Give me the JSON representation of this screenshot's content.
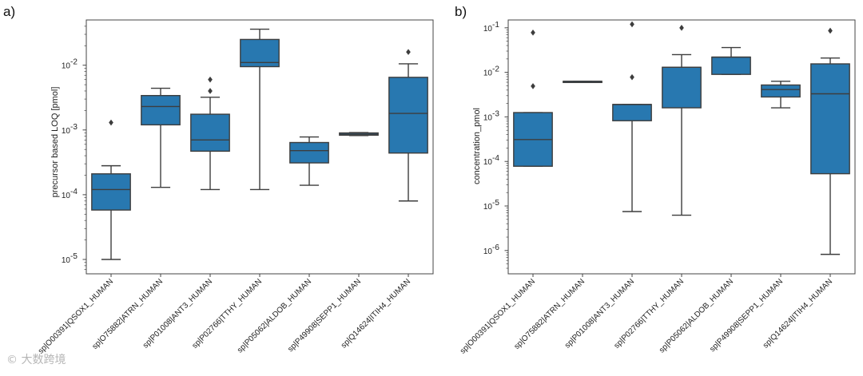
{
  "colors": {
    "box": "#2878b0",
    "line": "#3d3d3d",
    "frame": "#444444"
  },
  "watermark": "© 大数跨境",
  "chart_data": [
    {
      "type": "box",
      "panel_label": "a)",
      "ylabel": "precursor based LOQ [pmol]",
      "yscale": "log",
      "ylim": [
        6e-06,
        0.05
      ],
      "ticks": [
        {
          "value": 1e-05,
          "label": "10"
        },
        {
          "value": 0.0001,
          "label": "10"
        },
        {
          "value": 0.001,
          "label": "10"
        },
        {
          "value": 0.01,
          "label": "10"
        }
      ],
      "tick_exponents": [
        "-5",
        "-4",
        "-3",
        "-2"
      ],
      "categories": [
        "sp|O00391|QSOX1_HUMAN",
        "sp|O75882|ATRN_HUMAN",
        "sp|P01008|ANT3_HUMAN",
        "sp|P02766|TTHY_HUMAN",
        "sp|P05062|ALDOB_HUMAN",
        "sp|P49908|SEPP1_HUMAN",
        "sp|Q14624|ITIH4_HUMAN"
      ],
      "boxes": [
        {
          "whislo": 1e-05,
          "q1": 5.8e-05,
          "med": 0.00012,
          "q3": 0.00021,
          "whishi": 0.00028,
          "fliers": [
            0.0013
          ]
        },
        {
          "whislo": 0.00013,
          "q1": 0.0012,
          "med": 0.0023,
          "q3": 0.0034,
          "whishi": 0.0044,
          "fliers": []
        },
        {
          "whislo": 0.00012,
          "q1": 0.00047,
          "med": 0.0007,
          "q3": 0.00175,
          "whishi": 0.0032,
          "fliers": [
            0.006,
            0.004
          ]
        },
        {
          "whislo": 0.00012,
          "q1": 0.0095,
          "med": 0.011,
          "q3": 0.025,
          "whishi": 0.036,
          "fliers": []
        },
        {
          "whislo": 0.00014,
          "q1": 0.00031,
          "med": 0.00048,
          "q3": 0.00064,
          "whishi": 0.00078,
          "fliers": []
        },
        {
          "whislo": 0.00082,
          "q1": 0.00083,
          "med": 0.00086,
          "q3": 0.0009,
          "whishi": 0.00091,
          "fliers": []
        },
        {
          "whislo": 8e-05,
          "q1": 0.00044,
          "med": 0.0018,
          "q3": 0.0065,
          "whishi": 0.0105,
          "fliers": [
            0.016
          ]
        }
      ]
    },
    {
      "type": "box",
      "panel_label": "b)",
      "ylabel": "concentration_pmol",
      "yscale": "log",
      "ylim": [
        3e-07,
        0.15
      ],
      "ticks": [
        {
          "value": 1e-06,
          "label": "10"
        },
        {
          "value": 1e-05,
          "label": "10"
        },
        {
          "value": 0.0001,
          "label": "10"
        },
        {
          "value": 0.001,
          "label": "10"
        },
        {
          "value": 0.01,
          "label": "10"
        },
        {
          "value": 0.1,
          "label": "10"
        }
      ],
      "tick_exponents": [
        "-6",
        "-5",
        "-4",
        "-3",
        "-2",
        "-1"
      ],
      "categories": [
        "sp|O00391|QSOX1_HUMAN",
        "sp|O75882|ATRN_HUMAN",
        "sp|P01008|ANT3_HUMAN",
        "sp|P02766|TTHY_HUMAN",
        "sp|P05062|ALDOB_HUMAN",
        "sp|P49908|SEPP1_HUMAN",
        "sp|Q14624|ITIH4_HUMAN"
      ],
      "boxes": [
        {
          "whislo": 7.8e-05,
          "q1": 7.8e-05,
          "med": 0.00031,
          "q3": 0.00125,
          "whishi": 0.00125,
          "fliers": [
            0.078,
            0.0049
          ]
        },
        {
          "whislo": 0.0063,
          "q1": 0.0063,
          "med": 0.0063,
          "q3": 0.0063,
          "whishi": 0.0063,
          "fliers": []
        },
        {
          "whislo": 7.5e-06,
          "q1": 0.00082,
          "med": 0.0019,
          "q3": 0.0019,
          "whishi": 0.0019,
          "fliers": [
            0.12,
            0.0078
          ]
        },
        {
          "whislo": 6.2e-06,
          "q1": 0.0016,
          "med": 0.013,
          "q3": 0.013,
          "whishi": 0.025,
          "fliers": [
            0.1
          ]
        },
        {
          "whislo": 0.009,
          "q1": 0.009,
          "med": 0.022,
          "q3": 0.022,
          "whishi": 0.036,
          "fliers": []
        },
        {
          "whislo": 0.0016,
          "q1": 0.0028,
          "med": 0.0041,
          "q3": 0.0052,
          "whishi": 0.0063,
          "fliers": []
        },
        {
          "whislo": 8.2e-07,
          "q1": 5.3e-05,
          "med": 0.0033,
          "q3": 0.0155,
          "whishi": 0.021,
          "fliers": [
            0.086
          ]
        }
      ]
    }
  ]
}
